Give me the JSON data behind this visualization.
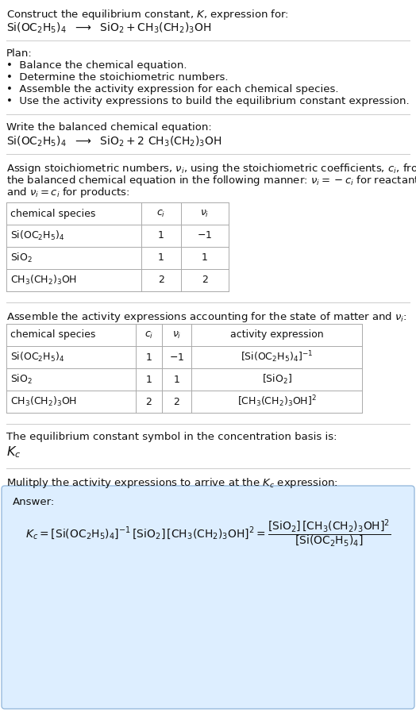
{
  "bg_color": "#ffffff",
  "answer_bg": "#ddeeff",
  "answer_border": "#99bbdd",
  "line_color": "#cccccc",
  "table_line_color": "#aaaaaa",
  "text_color": "#111111",
  "fs": 9.5,
  "s1_line1": "Construct the equilibrium constant, $K$, expression for:",
  "s1_line2": "$\\mathrm{Si(OC_2H_5)_4}$  $\\longrightarrow$  $\\mathrm{SiO_2 + CH_3(CH_2)_3OH}$",
  "s2_header": "Plan:",
  "s2_items": [
    "•  Balance the chemical equation.",
    "•  Determine the stoichiometric numbers.",
    "•  Assemble the activity expression for each chemical species.",
    "•  Use the activity expressions to build the equilibrium constant expression."
  ],
  "s3_header": "Write the balanced chemical equation:",
  "s3_eq": "$\\mathrm{Si(OC_2H_5)_4}$  $\\longrightarrow$  $\\mathrm{SiO_2 + 2\\ CH_3(CH_2)_3OH}$",
  "s4_text": [
    "Assign stoichiometric numbers, $\\nu_i$, using the stoichiometric coefficients, $c_i$, from",
    "the balanced chemical equation in the following manner: $\\nu_i = -c_i$ for reactants",
    "and $\\nu_i = c_i$ for products:"
  ],
  "t1_headers": [
    "chemical species",
    "$c_i$",
    "$\\nu_i$"
  ],
  "t1_data": [
    [
      "$\\mathrm{Si(OC_2H_5)_4}$",
      "1",
      "$-1$"
    ],
    [
      "$\\mathrm{SiO_2}$",
      "1",
      "1"
    ],
    [
      "$\\mathrm{CH_3(CH_2)_3OH}$",
      "2",
      "2"
    ]
  ],
  "s5_text": "Assemble the activity expressions accounting for the state of matter and $\\nu_i$:",
  "t2_headers": [
    "chemical species",
    "$c_i$",
    "$\\nu_i$",
    "activity expression"
  ],
  "t2_data": [
    [
      "$\\mathrm{Si(OC_2H_5)_4}$",
      "1",
      "$-1$",
      "$[\\mathrm{Si(OC_2H_5)_4}]^{-1}$"
    ],
    [
      "$\\mathrm{SiO_2}$",
      "1",
      "1",
      "$[\\mathrm{SiO_2}]$"
    ],
    [
      "$\\mathrm{CH_3(CH_2)_3OH}$",
      "2",
      "2",
      "$[\\mathrm{CH_3(CH_2)_3OH}]^2$"
    ]
  ],
  "s6_text": "The equilibrium constant symbol in the concentration basis is:",
  "s6_symbol": "$K_c$",
  "s7_text": "Mulitply the activity expressions to arrive at the $K_c$ expression:",
  "ans_label": "Answer:",
  "ans_eq": "$K_c = [\\mathrm{Si(OC_2H_5)_4}]^{-1}\\,[\\mathrm{SiO_2}]\\,[\\mathrm{CH_3(CH_2)_3OH}]^2 = \\dfrac{[\\mathrm{SiO_2}]\\,[\\mathrm{CH_3(CH_2)_3OH}]^2}{[\\mathrm{Si(OC_2H_5)_4}]}$"
}
